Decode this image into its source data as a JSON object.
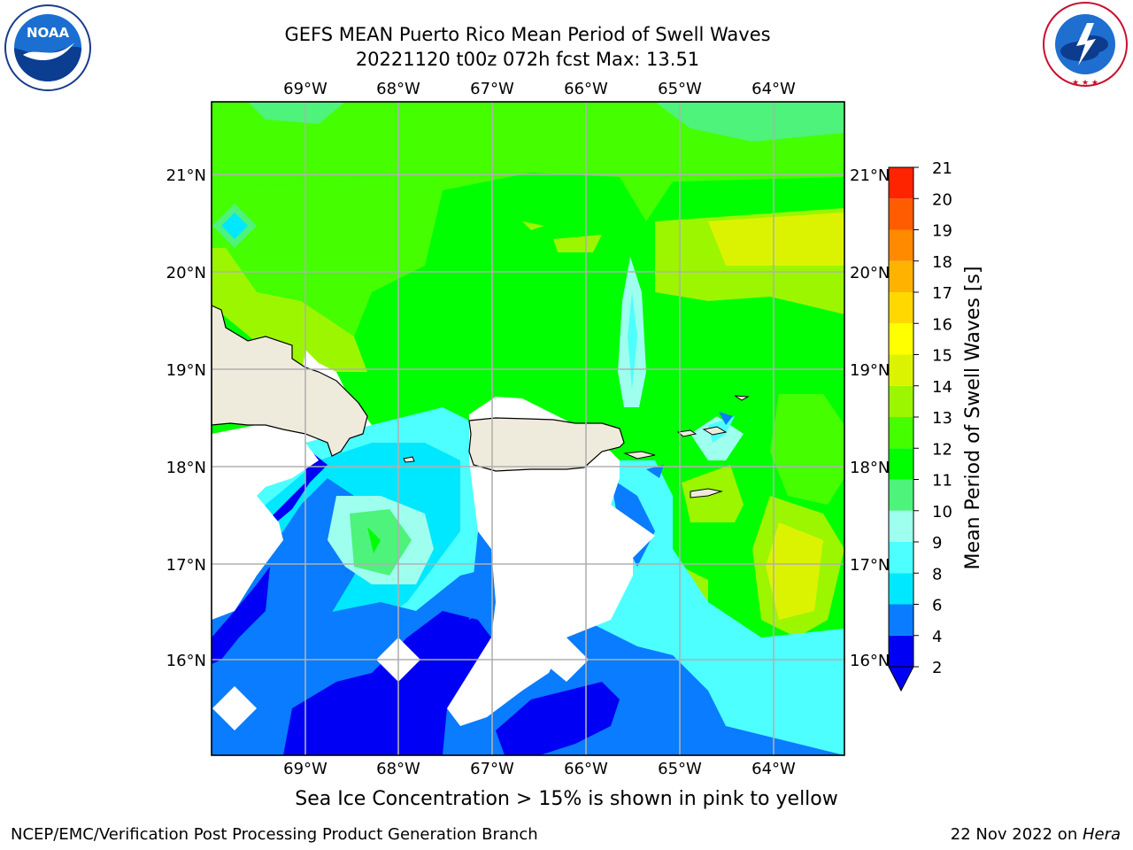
{
  "header": {
    "title_line1": "GEFS MEAN Puerto Rico Mean Period of Swell Waves",
    "title_line2": "20221120 t00z 072h fcst   Max: 13.51"
  },
  "logos": {
    "left": {
      "name": "noaa-logo",
      "text": "NOAA",
      "ring_text": "NATIONAL OCEANIC AND ATMOSPHERIC ADMINISTRATION · U.S. DEPARTMENT OF COMMERCE"
    },
    "right": {
      "name": "nws-logo",
      "ring_text": "NATIONAL WEATHER SERVICE"
    }
  },
  "map": {
    "lon_labels": [
      "69°W",
      "68°W",
      "67°W",
      "66°W",
      "65°W",
      "64°W"
    ],
    "lat_labels": [
      "21°N",
      "20°N",
      "19°N",
      "18°N",
      "17°N",
      "16°N"
    ],
    "land_color": "#efebdc",
    "ice_color": "#ffffff"
  },
  "colorbar": {
    "label": "Mean Period of Swell Waves [s]",
    "ticks": [
      "2",
      "4",
      "6",
      "8",
      "9",
      "10",
      "11",
      "12",
      "13",
      "14",
      "15",
      "16",
      "17",
      "18",
      "19",
      "20",
      "21"
    ],
    "colors": [
      "#0000f5",
      "#0a7cff",
      "#00e8ff",
      "#4dffff",
      "#9fffef",
      "#4df37a",
      "#00ff00",
      "#45ff00",
      "#9bf600",
      "#dcf300",
      "#ffff00",
      "#ffd800",
      "#ffb300",
      "#ff8a00",
      "#ff5c00",
      "#ff2400"
    ],
    "extend_color": "#0000f5"
  },
  "footer": {
    "note": "Sea Ice Concentration > 15% is shown in pink to yellow",
    "credit": "NCEP/EMC/Verification Post Processing Product Generation Branch",
    "date_prefix": "22 Nov 2022 on ",
    "machine": "Hera"
  }
}
